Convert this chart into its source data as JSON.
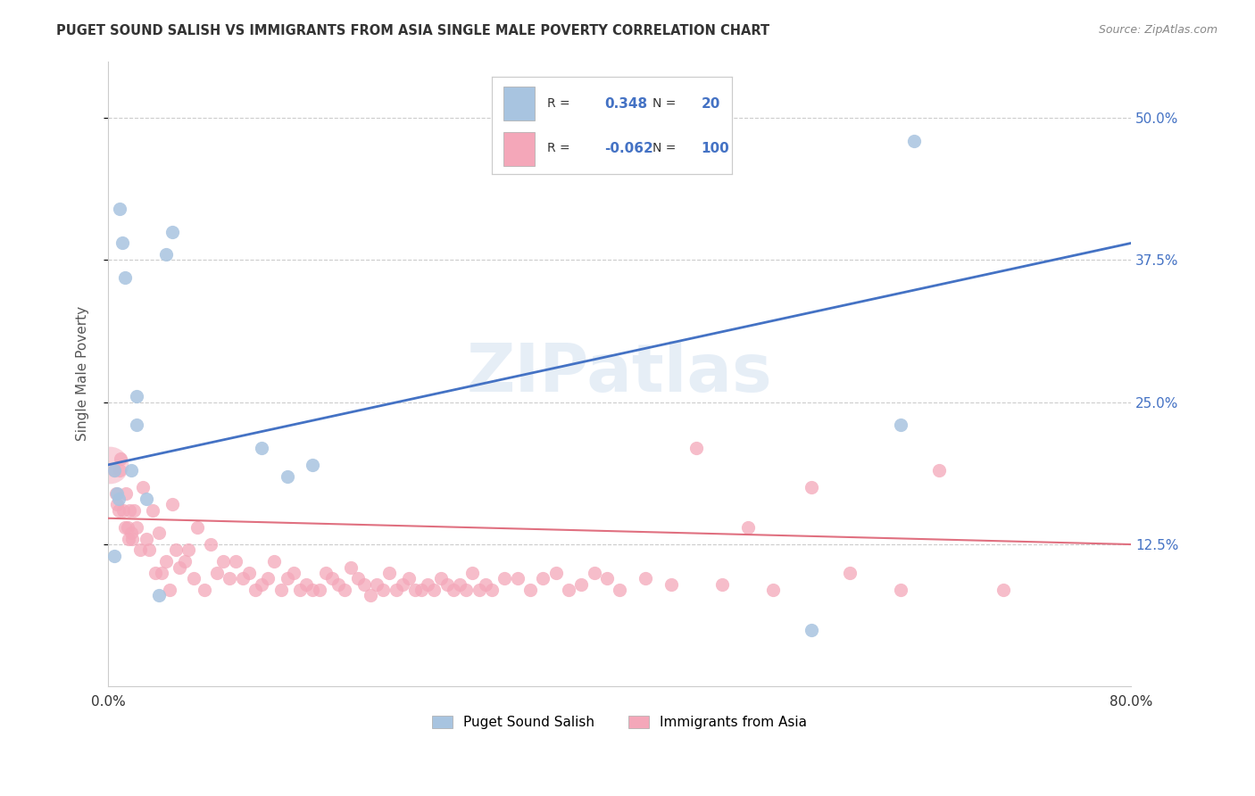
{
  "title": "PUGET SOUND SALISH VS IMMIGRANTS FROM ASIA SINGLE MALE POVERTY CORRELATION CHART",
  "source": "Source: ZipAtlas.com",
  "ylabel": "Single Male Poverty",
  "xlim": [
    0.0,
    0.8
  ],
  "ylim": [
    0.0,
    0.55
  ],
  "ytick_positions": [
    0.125,
    0.25,
    0.375,
    0.5
  ],
  "ytick_labels": [
    "12.5%",
    "25.0%",
    "37.5%",
    "50.0%"
  ],
  "legend1_label": "Puget Sound Salish",
  "legend2_label": "Immigrants from Asia",
  "R_salish": 0.348,
  "N_salish": 20,
  "R_asia": -0.062,
  "N_asia": 100,
  "color_salish": "#a8c4e0",
  "color_asia": "#f4a7b9",
  "line_color_salish": "#4472c4",
  "line_color_asia": "#e07080",
  "watermark": "ZIPatlas",
  "salish_x": [
    0.005,
    0.009,
    0.011,
    0.013,
    0.018,
    0.022,
    0.022,
    0.03,
    0.04,
    0.045,
    0.05,
    0.12,
    0.14,
    0.16,
    0.005,
    0.007,
    0.008,
    0.55,
    0.62,
    0.63
  ],
  "salish_y": [
    0.115,
    0.42,
    0.39,
    0.36,
    0.19,
    0.255,
    0.23,
    0.165,
    0.08,
    0.38,
    0.4,
    0.21,
    0.185,
    0.195,
    0.19,
    0.17,
    0.165,
    0.05,
    0.23,
    0.48
  ],
  "asia_x": [
    0.005,
    0.006,
    0.007,
    0.008,
    0.009,
    0.01,
    0.012,
    0.013,
    0.014,
    0.015,
    0.016,
    0.017,
    0.018,
    0.019,
    0.02,
    0.022,
    0.025,
    0.027,
    0.03,
    0.032,
    0.035,
    0.037,
    0.04,
    0.042,
    0.045,
    0.048,
    0.05,
    0.053,
    0.056,
    0.06,
    0.063,
    0.067,
    0.07,
    0.075,
    0.08,
    0.085,
    0.09,
    0.095,
    0.1,
    0.105,
    0.11,
    0.115,
    0.12,
    0.125,
    0.13,
    0.135,
    0.14,
    0.145,
    0.15,
    0.155,
    0.16,
    0.165,
    0.17,
    0.175,
    0.18,
    0.185,
    0.19,
    0.195,
    0.2,
    0.205,
    0.21,
    0.215,
    0.22,
    0.225,
    0.23,
    0.235,
    0.24,
    0.245,
    0.25,
    0.255,
    0.26,
    0.265,
    0.27,
    0.275,
    0.28,
    0.285,
    0.29,
    0.295,
    0.3,
    0.31,
    0.32,
    0.33,
    0.34,
    0.35,
    0.36,
    0.37,
    0.38,
    0.39,
    0.4,
    0.42,
    0.44,
    0.46,
    0.48,
    0.5,
    0.52,
    0.55,
    0.58,
    0.62,
    0.65,
    0.7
  ],
  "asia_y": [
    0.19,
    0.17,
    0.16,
    0.155,
    0.19,
    0.2,
    0.155,
    0.14,
    0.17,
    0.14,
    0.13,
    0.155,
    0.135,
    0.13,
    0.155,
    0.14,
    0.12,
    0.175,
    0.13,
    0.12,
    0.155,
    0.1,
    0.135,
    0.1,
    0.11,
    0.085,
    0.16,
    0.12,
    0.105,
    0.11,
    0.12,
    0.095,
    0.14,
    0.085,
    0.125,
    0.1,
    0.11,
    0.095,
    0.11,
    0.095,
    0.1,
    0.085,
    0.09,
    0.095,
    0.11,
    0.085,
    0.095,
    0.1,
    0.085,
    0.09,
    0.085,
    0.085,
    0.1,
    0.095,
    0.09,
    0.085,
    0.105,
    0.095,
    0.09,
    0.08,
    0.09,
    0.085,
    0.1,
    0.085,
    0.09,
    0.095,
    0.085,
    0.085,
    0.09,
    0.085,
    0.095,
    0.09,
    0.085,
    0.09,
    0.085,
    0.1,
    0.085,
    0.09,
    0.085,
    0.095,
    0.095,
    0.085,
    0.095,
    0.1,
    0.085,
    0.09,
    0.1,
    0.095,
    0.085,
    0.095,
    0.09,
    0.21,
    0.09,
    0.14,
    0.085,
    0.175,
    0.1,
    0.085,
    0.19,
    0.085
  ],
  "line_salish_x0": 0.0,
  "line_salish_y0": 0.195,
  "line_salish_x1": 0.8,
  "line_salish_y1": 0.39,
  "line_asia_x0": 0.0,
  "line_asia_y0": 0.148,
  "line_asia_x1": 0.8,
  "line_asia_y1": 0.125
}
